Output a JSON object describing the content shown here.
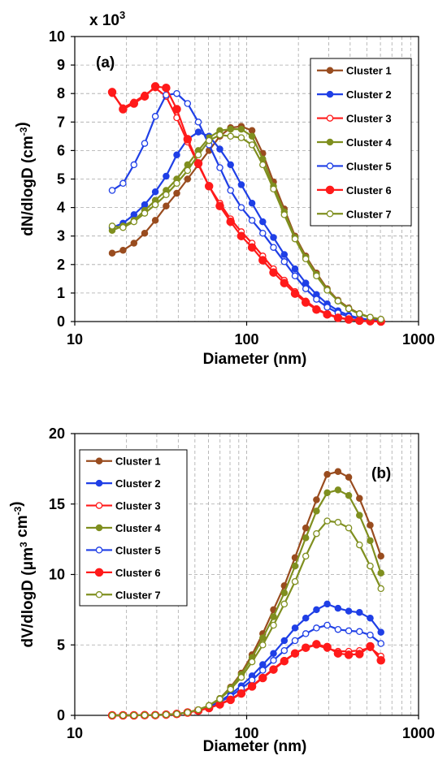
{
  "chart_data": [
    {
      "type": "line",
      "panel_label": "(a)",
      "xlabel": "Diameter (nm)",
      "ylabel": "dN/dlogD (cm-3)",
      "multiplier_label": "x 10",
      "multiplier_exponent": "3",
      "x_scale": "log",
      "xlim": [
        10,
        1000
      ],
      "ylim": [
        0,
        10
      ],
      "x_ticks": [
        10,
        100,
        1000
      ],
      "y_ticks": [
        0,
        1,
        2,
        3,
        4,
        5,
        6,
        7,
        8,
        9,
        10
      ],
      "grid": true,
      "legend_position": "top-right",
      "x": [
        16.5,
        19.1,
        22.1,
        25.5,
        29.4,
        34.0,
        39.2,
        45.3,
        52.3,
        60.4,
        69.8,
        80.6,
        93.1,
        107.5,
        124.1,
        143.3,
        165.5,
        191.1,
        220.7,
        254.8,
        294.3,
        339.8,
        392.4,
        453.1,
        523.3,
        604.3
      ],
      "series": [
        {
          "name": "Cluster 1",
          "color": "#994c1f",
          "marker": "filled",
          "values": [
            2.4,
            2.5,
            2.75,
            3.1,
            3.55,
            4.05,
            4.5,
            5.0,
            5.5,
            6.0,
            6.5,
            6.8,
            6.85,
            6.7,
            5.9,
            4.9,
            3.95,
            3.0,
            2.3,
            1.7,
            1.15,
            0.75,
            0.48,
            0.28,
            0.15,
            0.08
          ]
        },
        {
          "name": "Cluster 2",
          "color": "#1f3fe6",
          "marker": "filled",
          "values": [
            3.3,
            3.45,
            3.75,
            4.1,
            4.55,
            5.1,
            5.85,
            6.4,
            6.65,
            6.5,
            6.05,
            5.5,
            4.8,
            4.15,
            3.5,
            2.95,
            2.35,
            1.85,
            1.35,
            0.95,
            0.62,
            0.38,
            0.22,
            0.12,
            0.06,
            0.03
          ]
        },
        {
          "name": "Cluster 3",
          "color": "#ff1a1a",
          "marker": "open",
          "values": [
            8.0,
            7.5,
            7.7,
            7.95,
            8.2,
            7.9,
            7.15,
            6.3,
            5.5,
            4.75,
            4.15,
            3.6,
            3.15,
            2.75,
            2.3,
            1.85,
            1.45,
            1.05,
            0.72,
            0.45,
            0.27,
            0.15,
            0.08,
            0.04,
            0.02,
            0.01
          ]
        },
        {
          "name": "Cluster 4",
          "color": "#7f8f1f",
          "marker": "filled",
          "values": [
            3.2,
            3.35,
            3.55,
            3.9,
            4.25,
            4.6,
            5.0,
            5.5,
            6.0,
            6.45,
            6.7,
            6.75,
            6.75,
            6.5,
            5.7,
            4.75,
            3.85,
            2.95,
            2.25,
            1.65,
            1.12,
            0.72,
            0.45,
            0.26,
            0.14,
            0.07
          ]
        },
        {
          "name": "Cluster 5",
          "color": "#1f3fe6",
          "marker": "open",
          "values": [
            4.6,
            4.85,
            5.5,
            6.25,
            7.2,
            7.95,
            8.0,
            7.65,
            7.0,
            6.2,
            5.4,
            4.6,
            4.0,
            3.55,
            3.1,
            2.6,
            2.1,
            1.6,
            1.15,
            0.78,
            0.5,
            0.3,
            0.17,
            0.09,
            0.04,
            0.02
          ]
        },
        {
          "name": "Cluster 6",
          "color": "#ff1a1a",
          "marker": "filled",
          "values": [
            8.05,
            7.45,
            7.65,
            7.9,
            8.25,
            8.2,
            7.45,
            6.4,
            5.55,
            4.75,
            4.05,
            3.5,
            3.0,
            2.6,
            2.15,
            1.72,
            1.35,
            0.98,
            0.67,
            0.42,
            0.25,
            0.13,
            0.07,
            0.03,
            0.01,
            0.0
          ]
        },
        {
          "name": "Cluster 7",
          "color": "#7f8f1f",
          "marker": "open",
          "values": [
            3.35,
            3.3,
            3.5,
            3.8,
            4.1,
            4.45,
            4.85,
            5.3,
            5.85,
            6.35,
            6.55,
            6.5,
            6.45,
            6.2,
            5.5,
            4.65,
            3.75,
            2.9,
            2.2,
            1.6,
            1.1,
            0.72,
            0.45,
            0.27,
            0.15,
            0.08
          ]
        }
      ]
    },
    {
      "type": "line",
      "panel_label": "(b)",
      "xlabel": "Diameter (nm)",
      "ylabel": "dV/dlogD (μm3 cm-3)",
      "x_scale": "log",
      "xlim": [
        10,
        1000
      ],
      "ylim": [
        0,
        20
      ],
      "x_ticks": [
        10,
        100,
        1000
      ],
      "y_ticks": [
        0,
        5,
        10,
        15,
        20
      ],
      "grid": true,
      "legend_position": "top-left",
      "x": [
        16.5,
        19.1,
        22.1,
        25.5,
        29.4,
        34.0,
        39.2,
        45.3,
        52.3,
        60.4,
        69.8,
        80.6,
        93.1,
        107.5,
        124.1,
        143.3,
        165.5,
        191.1,
        220.7,
        254.8,
        294.3,
        339.8,
        392.4,
        453.1,
        523.3,
        604.3
      ],
      "series": [
        {
          "name": "Cluster 1",
          "color": "#994c1f",
          "marker": "filled",
          "values": [
            0.0,
            0.0,
            0.0,
            0.01,
            0.02,
            0.05,
            0.1,
            0.2,
            0.4,
            0.7,
            1.2,
            2.0,
            3.0,
            4.3,
            5.8,
            7.5,
            9.2,
            11.2,
            13.3,
            15.3,
            17.1,
            17.3,
            16.9,
            15.4,
            13.5,
            11.3
          ]
        },
        {
          "name": "Cluster 2",
          "color": "#1f3fe6",
          "marker": "filled",
          "values": [
            0.0,
            0.0,
            0.0,
            0.01,
            0.02,
            0.05,
            0.1,
            0.2,
            0.38,
            0.65,
            1.0,
            1.5,
            2.1,
            2.8,
            3.6,
            4.4,
            5.3,
            6.2,
            6.9,
            7.5,
            7.9,
            7.6,
            7.4,
            7.3,
            6.9,
            5.9
          ]
        },
        {
          "name": "Cluster 3",
          "color": "#ff1a1a",
          "marker": "open",
          "values": [
            0.0,
            0.0,
            0.0,
            0.01,
            0.02,
            0.05,
            0.1,
            0.2,
            0.35,
            0.55,
            0.8,
            1.15,
            1.6,
            2.1,
            2.7,
            3.3,
            3.9,
            4.4,
            4.8,
            5.0,
            4.75,
            4.55,
            4.55,
            4.6,
            4.8,
            4.2
          ]
        },
        {
          "name": "Cluster 4",
          "color": "#7f8f1f",
          "marker": "filled",
          "values": [
            0.0,
            0.0,
            0.0,
            0.01,
            0.02,
            0.05,
            0.1,
            0.2,
            0.4,
            0.7,
            1.2,
            1.95,
            2.9,
            4.1,
            5.5,
            7.0,
            8.7,
            10.6,
            12.6,
            14.5,
            15.8,
            16.0,
            15.6,
            14.2,
            12.4,
            10.1
          ]
        },
        {
          "name": "Cluster 5",
          "color": "#1f3fe6",
          "marker": "open",
          "values": [
            0.0,
            0.0,
            0.0,
            0.01,
            0.02,
            0.05,
            0.1,
            0.2,
            0.37,
            0.62,
            0.95,
            1.35,
            1.9,
            2.5,
            3.2,
            3.9,
            4.6,
            5.3,
            5.8,
            6.2,
            6.4,
            6.1,
            6.0,
            5.95,
            5.7,
            5.1
          ]
        },
        {
          "name": "Cluster 6",
          "color": "#ff1a1a",
          "marker": "filled",
          "values": [
            0.0,
            0.0,
            0.0,
            0.01,
            0.02,
            0.05,
            0.1,
            0.2,
            0.33,
            0.52,
            0.78,
            1.1,
            1.55,
            2.05,
            2.65,
            3.25,
            3.85,
            4.4,
            4.8,
            5.05,
            4.85,
            4.4,
            4.3,
            4.35,
            4.9,
            3.9
          ]
        },
        {
          "name": "Cluster 7",
          "color": "#7f8f1f",
          "marker": "open",
          "values": [
            0.0,
            0.0,
            0.0,
            0.01,
            0.02,
            0.05,
            0.1,
            0.2,
            0.4,
            0.7,
            1.15,
            1.85,
            2.7,
            3.8,
            5.0,
            6.4,
            7.9,
            9.5,
            11.3,
            12.9,
            13.8,
            13.7,
            13.3,
            12.1,
            10.6,
            9.0
          ]
        }
      ]
    }
  ]
}
